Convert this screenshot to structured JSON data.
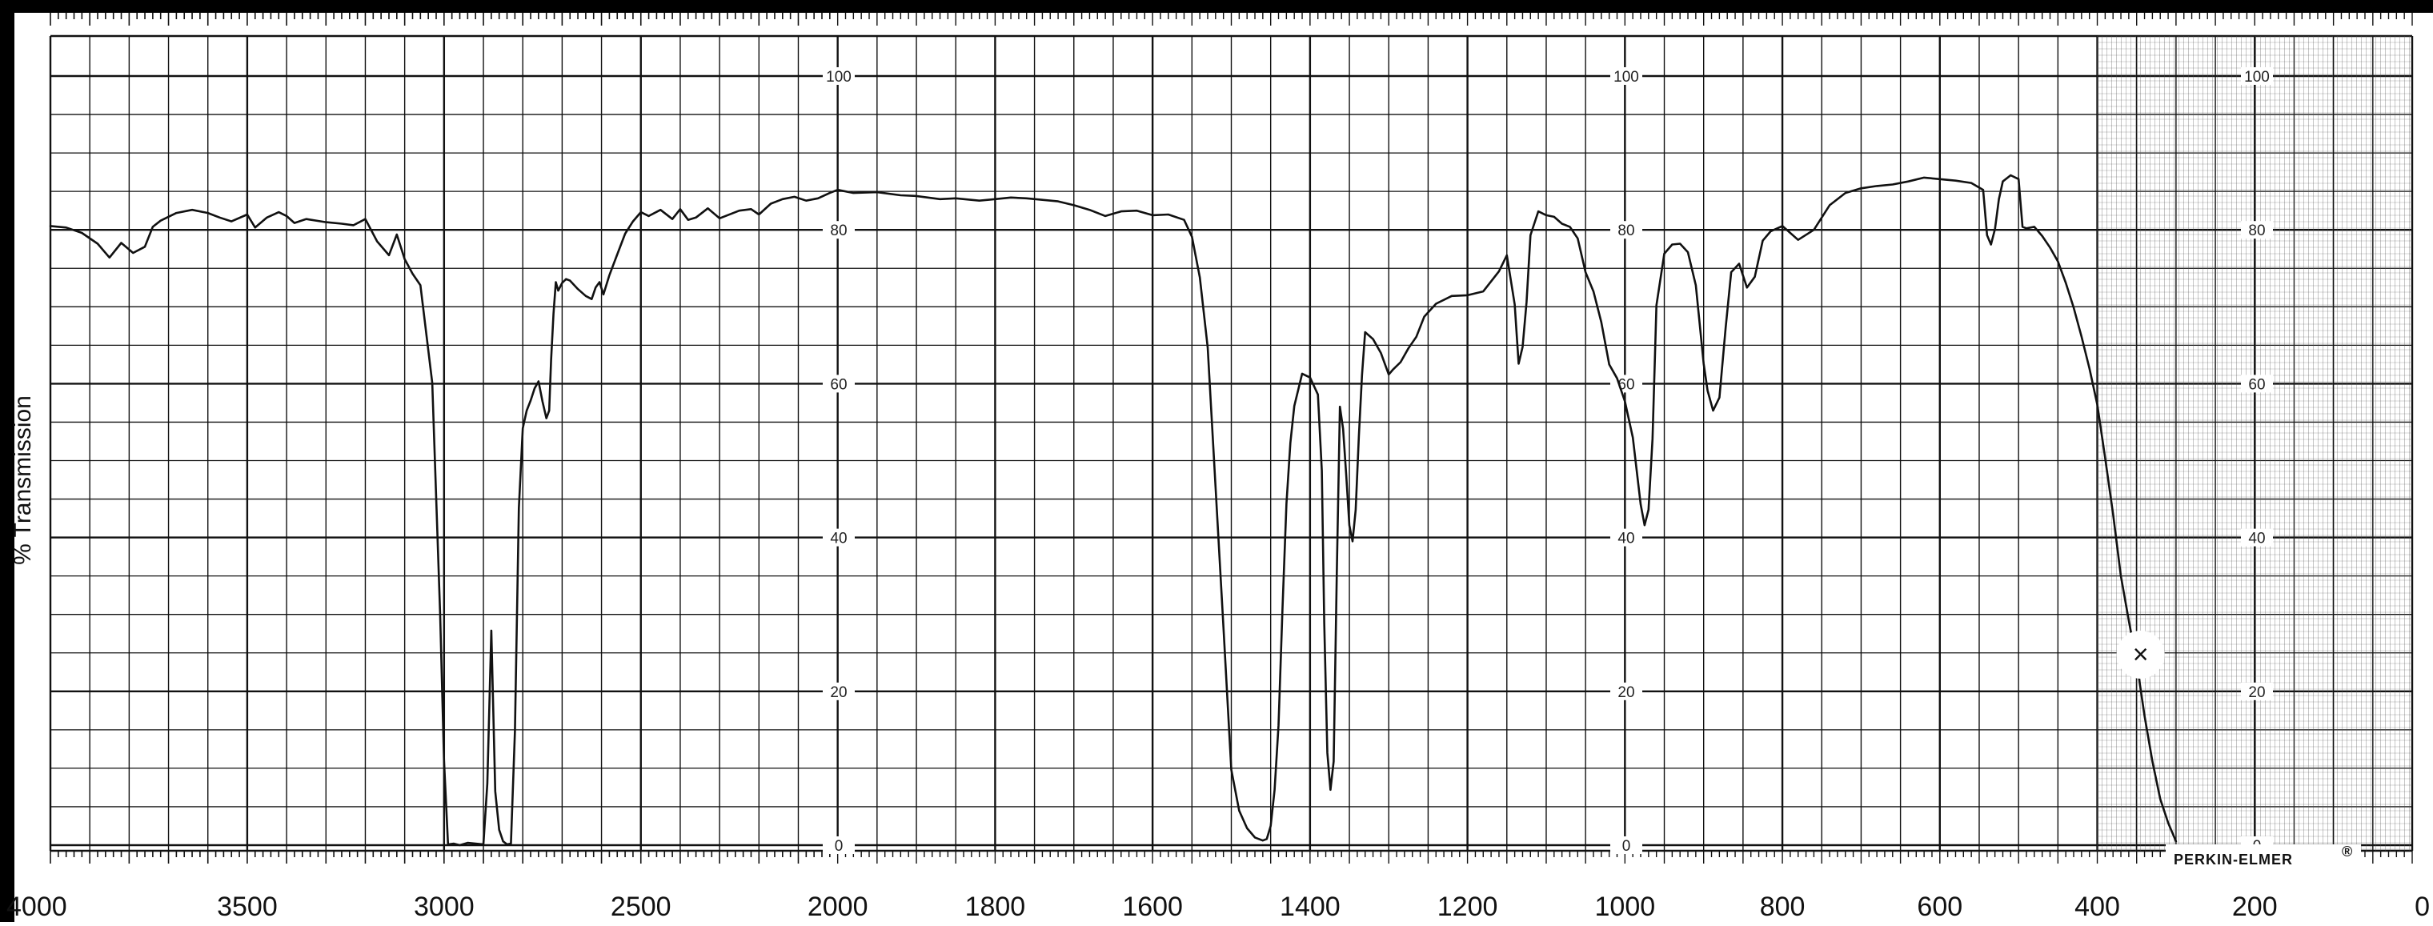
{
  "chart_data": {
    "type": "line",
    "title": "",
    "xlabel": "",
    "ylabel": "% Transmission",
    "brand": "PERKIN-ELMER",
    "brand_mark": "®",
    "marker_label": "×",
    "x_tick_labels": [
      "4000",
      "3500",
      "3000",
      "2500",
      "2000",
      "1800",
      "1600",
      "1400",
      "1200",
      "1000",
      "800",
      "600",
      "400",
      "200",
      "0"
    ],
    "transmission_tick_labels": [
      "100",
      "80",
      "60",
      "40",
      "20",
      "0"
    ],
    "ylim": [
      0,
      100
    ],
    "grid": true,
    "legend": "none",
    "colors": {
      "trace": "#111111",
      "grid": "#111111",
      "border": "#000000",
      "background": "#ffffff"
    },
    "series": [
      {
        "name": "",
        "x": [
          4000,
          3960,
          3920,
          3880,
          3850,
          3820,
          3790,
          3760,
          3740,
          3720,
          3680,
          3640,
          3600,
          3570,
          3540,
          3500,
          3480,
          3450,
          3420,
          3400,
          3380,
          3350,
          3300,
          3260,
          3230,
          3200,
          3170,
          3140,
          3120,
          3100,
          3080,
          3060,
          3030,
          3010,
          3000,
          2990,
          2975,
          2960,
          2940,
          2920,
          2900,
          2890,
          2880,
          2870,
          2860,
          2850,
          2840,
          2830,
          2820,
          2810,
          2800,
          2790,
          2780,
          2770,
          2760,
          2750,
          2740,
          2733,
          2728,
          2722,
          2716,
          2710,
          2700,
          2690,
          2680,
          2660,
          2640,
          2625,
          2615,
          2605,
          2595,
          2580,
          2560,
          2540,
          2520,
          2500,
          2480,
          2450,
          2420,
          2400,
          2380,
          2360,
          2330,
          2300,
          2280,
          2250,
          2220,
          2200,
          2170,
          2140,
          2110,
          2080,
          2050,
          2020,
          2000,
          1980,
          1950,
          1920,
          1900,
          1870,
          1850,
          1820,
          1800,
          1780,
          1760,
          1740,
          1720,
          1700,
          1680,
          1660,
          1640,
          1620,
          1600,
          1580,
          1560,
          1550,
          1540,
          1530,
          1520,
          1510,
          1500,
          1490,
          1480,
          1470,
          1460,
          1455,
          1450,
          1445,
          1440,
          1435,
          1430,
          1425,
          1420,
          1410,
          1400,
          1390,
          1385,
          1382,
          1378,
          1374,
          1370,
          1366,
          1362,
          1358,
          1354,
          1350,
          1346,
          1342,
          1338,
          1334,
          1330,
          1320,
          1310,
          1300,
          1295,
          1285,
          1275,
          1265,
          1255,
          1240,
          1220,
          1200,
          1180,
          1160,
          1150,
          1140,
          1135,
          1130,
          1125,
          1120,
          1110,
          1100,
          1090,
          1080,
          1070,
          1060,
          1050,
          1040,
          1030,
          1020,
          1010,
          1000,
          990,
          980,
          975,
          970,
          965,
          960,
          950,
          940,
          930,
          920,
          910,
          900,
          895,
          888,
          880,
          872,
          865,
          855,
          845,
          835,
          825,
          815,
          800,
          780,
          760,
          740,
          720,
          700,
          680,
          660,
          640,
          620,
          600,
          580,
          560,
          545,
          540,
          535,
          530,
          525,
          520,
          510,
          500,
          495,
          490,
          480,
          470,
          460,
          450,
          440,
          430,
          420,
          410,
          400,
          390,
          380,
          370,
          360,
          350,
          340,
          330,
          320,
          310,
          300
        ],
        "y": [
          80.5,
          80.3,
          79.6,
          78.2,
          76.4,
          78.3,
          77.0,
          77.8,
          80.4,
          81.2,
          82.2,
          82.6,
          82.2,
          81.6,
          81.1,
          82.0,
          80.3,
          81.6,
          82.3,
          81.8,
          80.9,
          81.4,
          81.0,
          80.8,
          80.6,
          81.4,
          78.5,
          76.7,
          79.4,
          76.2,
          74.3,
          72.8,
          60.1,
          30.2,
          11.0,
          0.1,
          0.2,
          0.0,
          0.3,
          0.2,
          0.1,
          8.0,
          27.9,
          7.0,
          2.0,
          0.5,
          0.1,
          0.2,
          14.8,
          43.8,
          54.2,
          56.5,
          57.8,
          59.4,
          60.3,
          57.7,
          55.5,
          56.5,
          63.1,
          69.1,
          73.2,
          72.1,
          73.1,
          73.6,
          73.4,
          72.3,
          71.4,
          71.0,
          72.5,
          73.2,
          71.6,
          74.1,
          76.8,
          79.5,
          81.1,
          82.3,
          81.8,
          82.6,
          81.4,
          82.7,
          81.3,
          81.6,
          82.8,
          81.5,
          81.9,
          82.5,
          82.7,
          82.0,
          83.4,
          84.0,
          84.3,
          83.8,
          84.1,
          84.8,
          85.2,
          84.8,
          84.9,
          84.5,
          84.4,
          84.0,
          84.1,
          83.8,
          84.0,
          84.2,
          84.1,
          83.9,
          83.7,
          83.2,
          82.6,
          81.8,
          82.4,
          82.5,
          81.9,
          82.0,
          81.3,
          79.1,
          73.8,
          64.7,
          46.6,
          28.3,
          9.8,
          4.5,
          2.2,
          1.0,
          0.6,
          0.8,
          2.5,
          7.2,
          15.6,
          30.6,
          44.4,
          52.3,
          57.1,
          61.3,
          60.8,
          58.6,
          48.7,
          29.0,
          12.0,
          7.2,
          10.9,
          35.3,
          57.0,
          54.1,
          48.1,
          41.6,
          39.5,
          43.6,
          53.2,
          61.1,
          66.7,
          65.8,
          64.0,
          61.2,
          61.8,
          62.8,
          64.6,
          66.1,
          68.7,
          70.4,
          71.4,
          71.5,
          72.0,
          74.6,
          76.7,
          70.3,
          62.6,
          64.8,
          70.6,
          79.3,
          82.4,
          81.9,
          81.7,
          80.8,
          80.4,
          78.9,
          74.5,
          72.0,
          68.0,
          62.5,
          60.7,
          57.7,
          53.0,
          44.3,
          41.6,
          43.6,
          52.8,
          70.2,
          76.9,
          78.1,
          78.2,
          77.1,
          72.8,
          62.6,
          59.1,
          56.5,
          58.2,
          67.3,
          74.5,
          75.6,
          72.5,
          73.9,
          78.6,
          79.8,
          80.5,
          78.7,
          80.0,
          83.2,
          84.8,
          85.4,
          85.7,
          85.9,
          86.3,
          86.8,
          86.6,
          86.4,
          86.1,
          85.2,
          79.3,
          78.1,
          80.1,
          84.0,
          86.3,
          87.1,
          86.6,
          80.4,
          80.2,
          80.4,
          79.2,
          77.7,
          75.9,
          73.1,
          69.9,
          66.1,
          62.0,
          57.3,
          50.3,
          43.1,
          35.0,
          29.2,
          23.8,
          16.8,
          10.9,
          6.0,
          2.9,
          0.5
        ]
      }
    ],
    "markers": [
      {
        "x": 345,
        "y": 25.5
      }
    ]
  }
}
